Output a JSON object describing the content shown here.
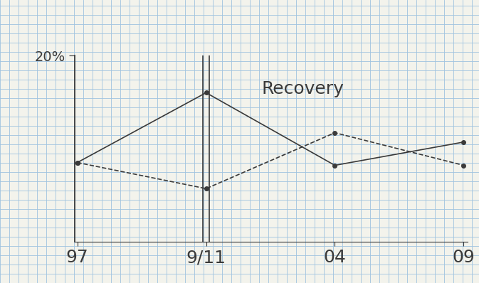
{
  "chart_data": {
    "type": "line",
    "annotation": "Recovery",
    "categories": [
      "97",
      "9/11",
      "04",
      "09"
    ],
    "series": [
      {
        "color": "#3a3a3a",
        "line_style": "solid",
        "marker": "o",
        "values": [
          8.5,
          16.0,
          8.2,
          10.7
        ]
      },
      {
        "color": "#3a3a3a",
        "line_style": "dashed",
        "marker": "o",
        "values": [
          8.5,
          5.7,
          11.7,
          8.2
        ]
      }
    ],
    "ylim": [
      0,
      20
    ],
    "yticks": [
      {
        "value": 20,
        "label": "20%"
      }
    ],
    "grid": false
  }
}
